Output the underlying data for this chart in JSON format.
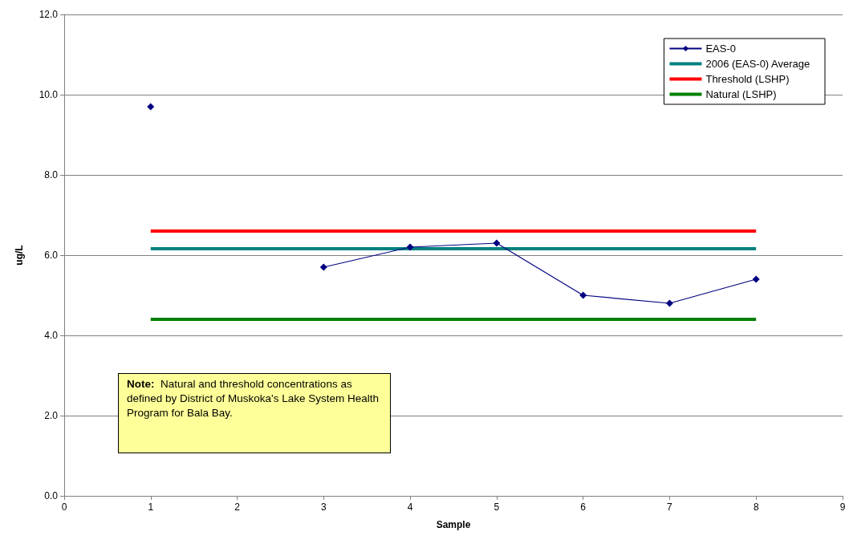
{
  "chart_data": {
    "type": "line",
    "xlabel": "Sample",
    "ylabel": "ug/L",
    "x": [
      1,
      2,
      3,
      4,
      5,
      6,
      7,
      8
    ],
    "series": [
      {
        "name": "EAS-0",
        "color": "#000080",
        "marker": "diamond",
        "values": [
          9.7,
          null,
          5.7,
          6.2,
          6.3,
          5.0,
          4.8,
          5.4
        ]
      },
      {
        "name": "2006 (EAS-0) Average",
        "color": "#008080",
        "marker": "none",
        "values": [
          6.16,
          6.16,
          6.16,
          6.16,
          6.16,
          6.16,
          6.16,
          6.16
        ]
      },
      {
        "name": "Threshold (LSHP)",
        "color": "#ff0000",
        "marker": "none",
        "values": [
          6.6,
          6.6,
          6.6,
          6.6,
          6.6,
          6.6,
          6.6,
          6.6
        ]
      },
      {
        "name": "Natural (LSHP)",
        "color": "#008000",
        "marker": "none",
        "values": [
          4.4,
          4.4,
          4.4,
          4.4,
          4.4,
          4.4,
          4.4,
          4.4
        ]
      }
    ],
    "xlim": [
      0,
      9
    ],
    "xticks": [
      0,
      1,
      2,
      3,
      4,
      5,
      6,
      7,
      8,
      9
    ],
    "ylim": [
      0,
      12
    ],
    "yticks": [
      {
        "value": 0,
        "label": "0.0"
      },
      {
        "value": 2,
        "label": "2.0"
      },
      {
        "value": 4,
        "label": "4.0"
      },
      {
        "value": 6,
        "label": "6.0"
      },
      {
        "value": 8,
        "label": "8.0"
      },
      {
        "value": 10,
        "label": "10.0"
      },
      {
        "value": 12,
        "label": "12.0"
      }
    ],
    "grid": "y",
    "legend": "top right",
    "annotations": [
      "Note:  Natural and threshold concentrations as defined by District of Muskoka's Lake System Health Program for Bala Bay."
    ]
  }
}
